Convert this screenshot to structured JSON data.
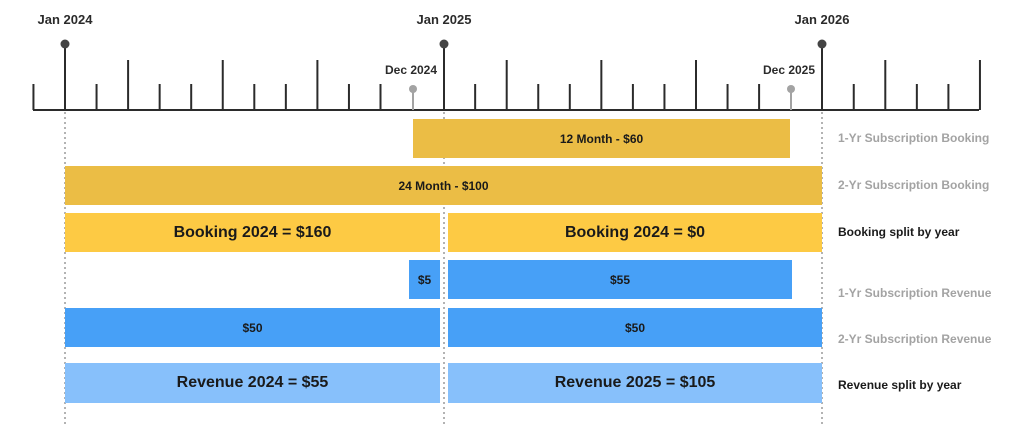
{
  "timeline": {
    "top_labels": [
      "Jan 2024",
      "Jan 2025",
      "Jan 2026"
    ],
    "mid_labels": [
      "Dec 2024",
      "Dec 2025"
    ]
  },
  "bars": {
    "sub1_booking": "12 Month - $60",
    "sub2_booking": "24 Month - $100",
    "booking_2024": "Booking 2024 = $160",
    "booking_2025": "Booking 2024 = $0",
    "sub1_rev_2024": "$5",
    "sub1_rev_2025": "$55",
    "sub2_rev_2024": "$50",
    "sub2_rev_2025": "$50",
    "revenue_2024": "Revenue 2024 = $55",
    "revenue_2025": "Revenue 2025 = $105"
  },
  "row_labels": {
    "sub1_booking": "1-Yr Subscription Booking",
    "sub2_booking": "2-Yr Subscription Booking",
    "booking_split": "Booking split by year",
    "sub1_revenue": "1-Yr Subscription Revenue",
    "sub2_revenue": "2-Yr Subscription Revenue",
    "revenue_split": "Revenue split by year"
  },
  "colors": {
    "subscription_booking": "#ebbd45",
    "booking_split": "#fdca44",
    "revenue": "#47a0f7",
    "revenue_split": "#87c0fb",
    "axis": "#2b2b2b",
    "muted": "#a3a3a3"
  }
}
